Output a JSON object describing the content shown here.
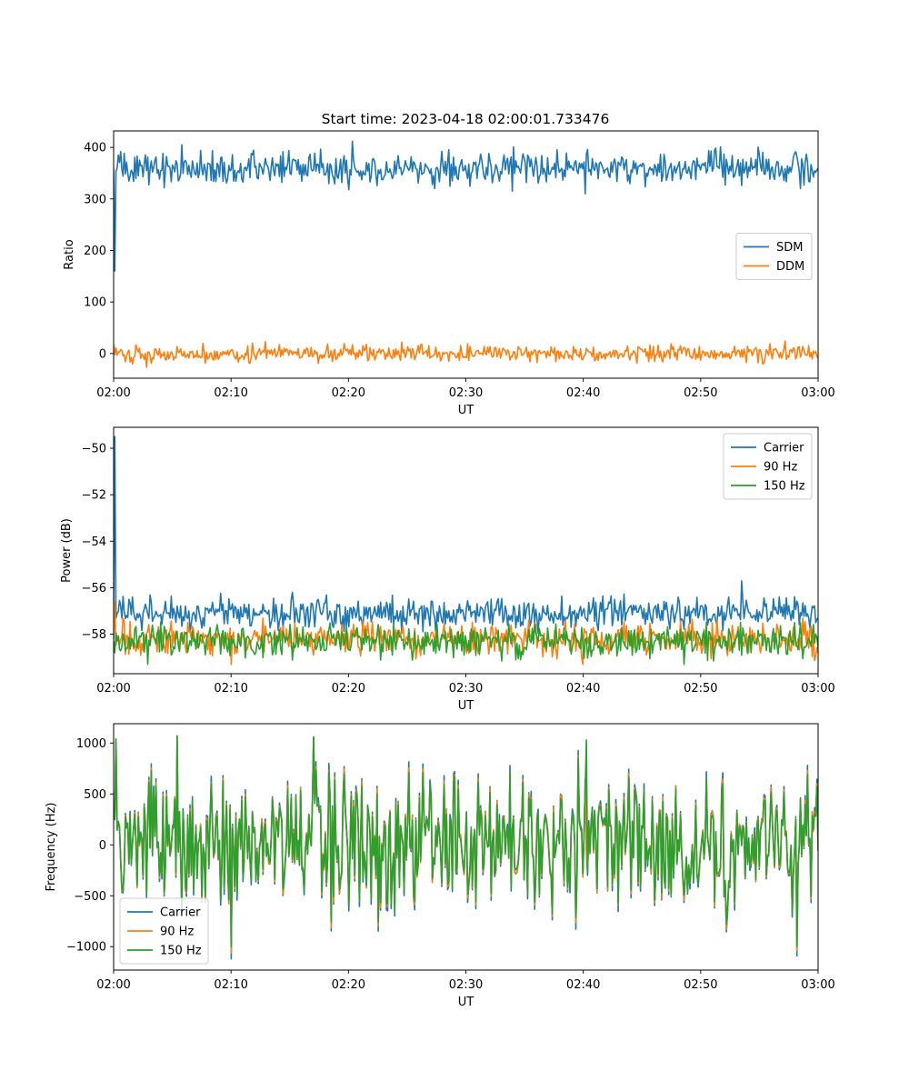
{
  "figure": {
    "title": "Start time: 2023-04-18 02:00:01.733476"
  },
  "colors": {
    "blue": "#1f77b4",
    "orange": "#ff7f0e",
    "green": "#2ca02c"
  },
  "chart_data": [
    {
      "type": "line",
      "title": "Start time: 2023-04-18 02:00:01.733476",
      "xlabel": "UT",
      "ylabel": "Ratio",
      "x_tick_labels": [
        "02:00",
        "02:10",
        "02:20",
        "02:30",
        "02:40",
        "02:50",
        "03:00"
      ],
      "y_ticks": [
        0,
        100,
        200,
        300,
        400
      ],
      "ylim": [
        -48,
        432
      ],
      "legend_position": "center-right",
      "series": [
        {
          "name": "SDM",
          "color": "#1f77b4",
          "baseline": 360,
          "noise": 16,
          "spike_start": 160,
          "peaks": [
            [
              5.8,
              405
            ],
            [
              20.3,
              412
            ],
            [
              0.4,
              385
            ]
          ],
          "troughs": [
            [
              40.2,
              310
            ],
            [
              20.0,
              318
            ],
            [
              58.5,
              320
            ]
          ]
        },
        {
          "name": "DDM",
          "color": "#ff7f0e",
          "baseline": 0,
          "noise": 8,
          "peaks": [
            [
              12.9,
              23
            ],
            [
              24.5,
              22
            ],
            [
              57.2,
              24
            ]
          ],
          "troughs": [
            [
              2.8,
              -27
            ]
          ]
        }
      ]
    },
    {
      "type": "line",
      "xlabel": "UT",
      "ylabel": "Power (dB)",
      "x_tick_labels": [
        "02:00",
        "02:10",
        "02:20",
        "02:30",
        "02:40",
        "02:50",
        "03:00"
      ],
      "y_ticks": [
        -58,
        -56,
        -54,
        -52,
        -50
      ],
      "y_tick_labels": [
        "−58",
        "−56",
        "−54",
        "−52",
        "−50"
      ],
      "ylim": [
        -59.7,
        -49.1
      ],
      "legend_position": "top-right",
      "series": [
        {
          "name": "Carrier",
          "color": "#1f77b4",
          "baseline": -57.1,
          "noise": 0.35,
          "spike_start": -49.5,
          "peaks": [
            [
              53.5,
              -55.7
            ],
            [
              15.2,
              -56.2
            ]
          ],
          "troughs": []
        },
        {
          "name": "90 Hz",
          "color": "#ff7f0e",
          "baseline": -58.2,
          "noise": 0.35,
          "spike_start": -56.6,
          "peaks": [],
          "troughs": [
            [
              40.0,
              -59.3
            ],
            [
              10.0,
              -59.3
            ]
          ]
        },
        {
          "name": "150 Hz",
          "color": "#2ca02c",
          "baseline": -58.3,
          "noise": 0.35,
          "spike_start": -58.8,
          "peaks": [],
          "troughs": [
            [
              2.9,
              -59.3
            ],
            [
              48.6,
              -59.3
            ]
          ]
        }
      ]
    },
    {
      "type": "line",
      "xlabel": "UT",
      "ylabel": "Frequency (Hz)",
      "x_tick_labels": [
        "02:00",
        "02:10",
        "02:20",
        "02:30",
        "02:40",
        "02:50",
        "03:00"
      ],
      "y_ticks": [
        -1000,
        -500,
        0,
        500,
        1000
      ],
      "y_tick_labels": [
        "−1000",
        "−500",
        "0",
        "500",
        "1000"
      ],
      "ylim": [
        -1230,
        1190
      ],
      "legend_position": "bottom-left",
      "series": [
        {
          "name": "Carrier",
          "color": "#1f77b4",
          "baseline": 0,
          "noise": 350,
          "peaks": [
            [
              0.2,
              1040
            ],
            [
              5.4,
              1070
            ],
            [
              17.0,
              1060
            ]
          ],
          "troughs": [
            [
              10.0,
              -1120
            ],
            [
              58.2,
              -1090
            ]
          ]
        },
        {
          "name": "90 Hz",
          "color": "#ff7f0e",
          "baseline": 0,
          "noise": 350,
          "peaks": [
            [
              0.2,
              1040
            ],
            [
              5.4,
              1070
            ],
            [
              17.0,
              1060
            ]
          ],
          "troughs": [
            [
              10.0,
              -1060
            ],
            [
              58.2,
              -1040
            ]
          ]
        },
        {
          "name": "150 Hz",
          "color": "#2ca02c",
          "baseline": 0,
          "noise": 350,
          "peaks": [
            [
              0.2,
              1040
            ],
            [
              5.4,
              1070
            ],
            [
              17.0,
              1060
            ],
            [
              40.3,
              1030
            ]
          ],
          "troughs": [
            [
              10.0,
              -1000
            ],
            [
              58.2,
              -1000
            ]
          ]
        }
      ]
    }
  ]
}
